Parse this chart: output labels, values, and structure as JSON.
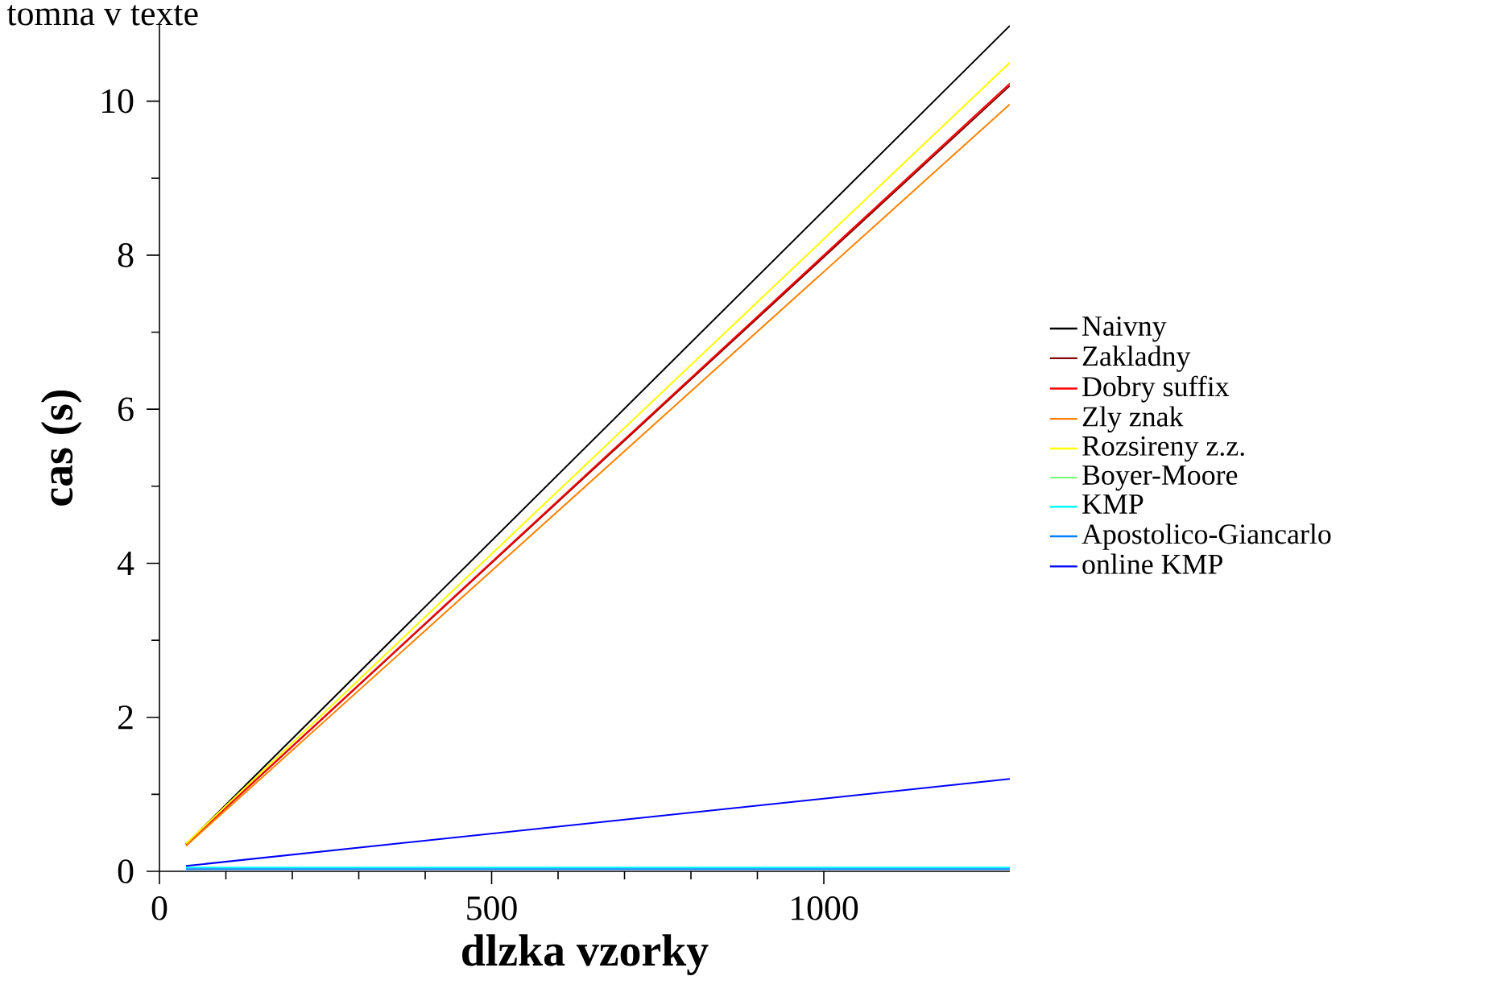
{
  "chart_data": {
    "type": "line",
    "title": "tomna v texte",
    "xlabel": "dlzka vzorky",
    "ylabel": "cas (s)",
    "x": [
      40,
      1280
    ],
    "series": [
      {
        "name": "Naivny",
        "color": "#000000",
        "values": [
          0.35,
          10.98
        ]
      },
      {
        "name": "Zakladny",
        "color": "#800000",
        "values": [
          0.35,
          10.2
        ]
      },
      {
        "name": "Dobry suffix",
        "color": "#ff0000",
        "values": [
          0.35,
          10.23
        ]
      },
      {
        "name": "Zly znak",
        "color": "#ff8000",
        "values": [
          0.33,
          9.96
        ]
      },
      {
        "name": "Rozsireny z.z.",
        "color": "#ffff00",
        "values": [
          0.36,
          10.5
        ]
      },
      {
        "name": "Boyer-Moore",
        "color": "#80ff80",
        "values": [
          null,
          null
        ]
      },
      {
        "name": "KMP",
        "color": "#00ffff",
        "values": [
          0.05,
          0.05
        ]
      },
      {
        "name": "Apostolico-Giancarlo",
        "color": "#0080ff",
        "values": [
          0.03,
          0.03
        ]
      },
      {
        "name": "online KMP",
        "color": "#0000ff",
        "values": [
          0.07,
          1.2
        ]
      }
    ],
    "xlim": [
      0,
      1280
    ],
    "ylim": [
      0,
      11
    ],
    "xticks": [
      0,
      500,
      1000
    ],
    "yticks": [
      0,
      2,
      4,
      6,
      8,
      10
    ],
    "legend": "right",
    "grid": false,
    "marker": "none",
    "line_style": "solid"
  }
}
